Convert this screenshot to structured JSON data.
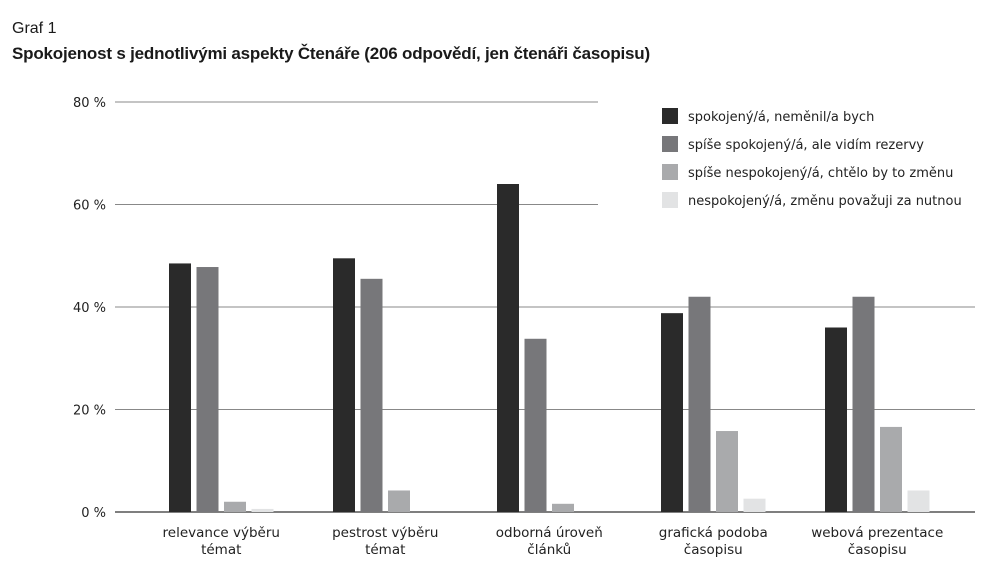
{
  "figure": {
    "label": "Graf 1",
    "title": "Spokojenost s jednotlivými aspekty Čtenáře (206 odpovědí, jen čtenáři časopisu)"
  },
  "chart_data": {
    "type": "bar",
    "title": "Spokojenost s jednotlivými aspekty Čtenáře (206 odpovědí, jen čtenáři časopisu)",
    "xlabel": "",
    "ylabel": "",
    "ylim": [
      0,
      80
    ],
    "yticks": [
      0,
      20,
      40,
      60,
      80
    ],
    "ytick_labels": [
      "0 %",
      "20 %",
      "40 %",
      "60 %",
      "80 %"
    ],
    "grid": true,
    "legend_position": "top-right",
    "categories": [
      [
        "relevance výběru",
        "témat"
      ],
      [
        "pestrost výběru",
        "témat"
      ],
      [
        "odborná úroveň",
        "článků"
      ],
      [
        "grafická podoba",
        "časopisu"
      ],
      [
        "webová prezentace",
        "časopisu"
      ]
    ],
    "series": [
      {
        "name": "spokojený/á, neměnil/a bych",
        "color": "#2a2a2a",
        "values": [
          48.5,
          49.5,
          64,
          38.8,
          36
        ]
      },
      {
        "name": "spíše spokojený/á, ale vidím rezervy",
        "color": "#77777a",
        "values": [
          47.8,
          45.5,
          33.8,
          42,
          42
        ]
      },
      {
        "name": "spíše nespokojený/á, chtělo by to změnu",
        "color": "#a9aaac",
        "values": [
          2,
          4.2,
          1.6,
          15.8,
          16.6
        ]
      },
      {
        "name": "nespokojený/á, změnu považuji za nutnou",
        "color": "#e2e3e4",
        "values": [
          0.6,
          0,
          0,
          2.6,
          4.2
        ]
      }
    ]
  }
}
